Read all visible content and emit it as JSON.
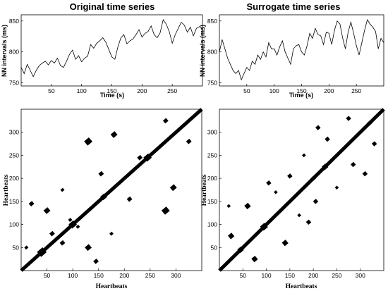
{
  "chart_data": [
    {
      "type": "line",
      "title": "Original time series",
      "xlabel": "Time (s)",
      "ylabel": "NN intervals (ms)",
      "xlim": [
        0,
        300
      ],
      "ylim": [
        745,
        860
      ],
      "xticks": [
        50,
        100,
        150,
        200,
        250
      ],
      "yticks": [
        750,
        800,
        850
      ],
      "x": [
        0,
        5,
        10,
        15,
        20,
        25,
        30,
        35,
        40,
        45,
        50,
        55,
        60,
        65,
        70,
        75,
        80,
        85,
        90,
        95,
        100,
        105,
        110,
        115,
        120,
        125,
        130,
        135,
        140,
        145,
        150,
        155,
        160,
        165,
        170,
        175,
        180,
        185,
        190,
        195,
        200,
        205,
        210,
        215,
        220,
        225,
        230,
        235,
        240,
        245,
        250,
        255,
        260,
        265,
        270,
        275,
        280,
        285,
        290,
        295,
        300
      ],
      "y": [
        775,
        765,
        780,
        770,
        760,
        770,
        778,
        782,
        785,
        779,
        786,
        782,
        790,
        778,
        775,
        785,
        796,
        803,
        788,
        794,
        784,
        790,
        793,
        812,
        806,
        814,
        818,
        823,
        816,
        804,
        792,
        788,
        808,
        823,
        828,
        813,
        818,
        821,
        828,
        836,
        824,
        830,
        833,
        842,
        828,
        823,
        831,
        852,
        845,
        833,
        814,
        828,
        838,
        848,
        843,
        832,
        840,
        826,
        838,
        841,
        836
      ],
      "grid": false
    },
    {
      "type": "line",
      "title": "Surrogate time series",
      "xlabel": "Time (s)",
      "ylabel": "NN intervals (ms)",
      "xlim": [
        0,
        300
      ],
      "ylim": [
        745,
        860
      ],
      "xticks": [
        50,
        100,
        150,
        200,
        250
      ],
      "yticks": [
        750,
        800,
        850
      ],
      "x": [
        0,
        5,
        10,
        15,
        20,
        25,
        30,
        35,
        40,
        45,
        50,
        55,
        60,
        65,
        70,
        75,
        80,
        85,
        90,
        95,
        100,
        105,
        110,
        115,
        120,
        125,
        130,
        135,
        140,
        145,
        150,
        155,
        160,
        165,
        170,
        175,
        180,
        185,
        190,
        195,
        200,
        205,
        210,
        215,
        220,
        225,
        230,
        235,
        240,
        245,
        250,
        255,
        260,
        265,
        270,
        275,
        280,
        285,
        290,
        295,
        300
      ],
      "y": [
        800,
        820,
        805,
        790,
        780,
        770,
        765,
        770,
        755,
        765,
        775,
        770,
        785,
        780,
        795,
        788,
        800,
        792,
        815,
        805,
        805,
        795,
        808,
        818,
        800,
        790,
        780,
        805,
        810,
        812,
        800,
        795,
        810,
        830,
        822,
        838,
        828,
        826,
        812,
        832,
        830,
        812,
        835,
        850,
        845,
        822,
        805,
        832,
        848,
        830,
        810,
        795,
        815,
        835,
        852,
        845,
        840,
        833,
        805,
        822,
        815
      ],
      "grid": false
    },
    {
      "type": "heatmap",
      "subtype": "recurrence-plot",
      "title": "",
      "xlabel": "Heartbeats",
      "ylabel": "Heartbeats",
      "xlim": [
        0,
        350
      ],
      "ylim": [
        0,
        350
      ],
      "xticks": [
        50,
        100,
        150,
        200,
        250,
        300
      ],
      "yticks": [
        50,
        100,
        150,
        200,
        250,
        300
      ],
      "recurrence_blocks": [
        [
          40,
          40,
          14
        ],
        [
          100,
          100,
          12
        ],
        [
          160,
          160,
          10
        ],
        [
          245,
          245,
          12
        ],
        [
          20,
          145,
          8
        ],
        [
          145,
          20,
          8
        ],
        [
          50,
          130,
          10
        ],
        [
          130,
          50,
          10
        ],
        [
          110,
          95,
          6
        ],
        [
          95,
          110,
          6
        ],
        [
          130,
          280,
          12
        ],
        [
          280,
          130,
          12
        ],
        [
          180,
          295,
          10
        ],
        [
          295,
          180,
          10
        ],
        [
          155,
          210,
          8
        ],
        [
          210,
          155,
          8
        ],
        [
          230,
          245,
          8
        ],
        [
          325,
          280,
          8
        ],
        [
          280,
          325,
          8
        ],
        [
          60,
          80,
          8
        ],
        [
          80,
          60,
          8
        ],
        [
          10,
          50,
          6
        ],
        [
          175,
          80,
          6
        ],
        [
          80,
          175,
          6
        ]
      ],
      "color": "#000000"
    },
    {
      "type": "heatmap",
      "subtype": "recurrence-plot",
      "title": "",
      "xlabel": "Heartbeats",
      "ylabel": "Heartbeats",
      "xlim": [
        0,
        350
      ],
      "ylim": [
        0,
        350
      ],
      "xticks": [
        50,
        100,
        150,
        200,
        250,
        300
      ],
      "yticks": [
        50,
        100,
        150,
        200,
        250,
        300
      ],
      "recurrence_blocks": [
        [
          45,
          45,
          10
        ],
        [
          95,
          95,
          12
        ],
        [
          225,
          225,
          10
        ],
        [
          200,
          200,
          8
        ],
        [
          320,
          320,
          8
        ],
        [
          25,
          75,
          10
        ],
        [
          75,
          25,
          10
        ],
        [
          60,
          140,
          10
        ],
        [
          140,
          60,
          10
        ],
        [
          105,
          190,
          8
        ],
        [
          190,
          105,
          8
        ],
        [
          150,
          205,
          8
        ],
        [
          205,
          150,
          8
        ],
        [
          230,
          285,
          8
        ],
        [
          285,
          230,
          8
        ],
        [
          275,
          330,
          8
        ],
        [
          330,
          275,
          8
        ],
        [
          170,
          120,
          6
        ],
        [
          120,
          170,
          6
        ],
        [
          180,
          250,
          6
        ],
        [
          250,
          180,
          6
        ],
        [
          310,
          210,
          8
        ],
        [
          210,
          310,
          8
        ],
        [
          20,
          140,
          6
        ]
      ],
      "color": "#000000"
    }
  ]
}
